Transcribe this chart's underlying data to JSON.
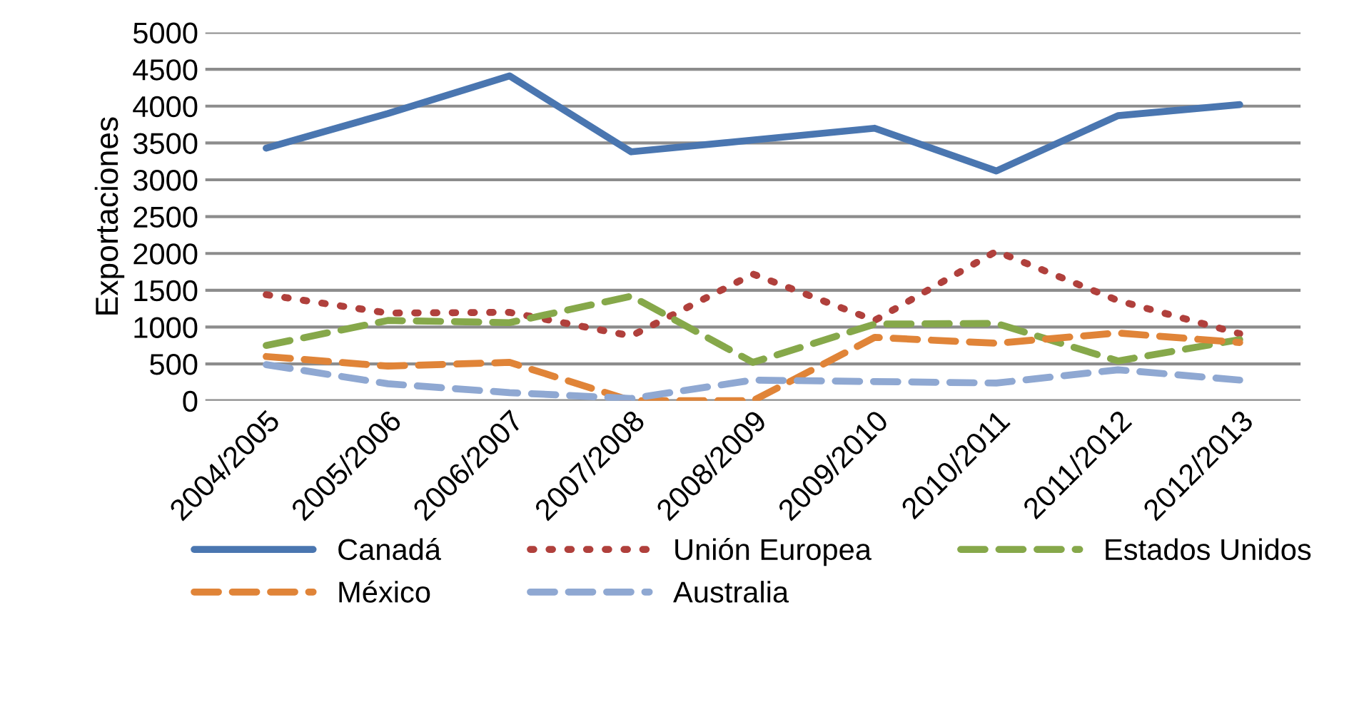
{
  "chart_data": {
    "type": "line",
    "ylabel": "Exportaciones",
    "categories": [
      "2004/2005",
      "2005/2006",
      "2006/2007",
      "2007/2008",
      "2008/2009",
      "2009/2010",
      "2010/2011",
      "2011/2012",
      "2012/2013"
    ],
    "series": [
      {
        "name": "Canadá",
        "color": "#4a76b0",
        "line_style": "solid",
        "values": [
          3430,
          3900,
          4410,
          3380,
          3540,
          3700,
          3120,
          3870,
          4020
        ]
      },
      {
        "name": "Unión Europea",
        "color": "#b0403c",
        "line_style": "dotted",
        "values": [
          1440,
          1190,
          1200,
          880,
          1720,
          1090,
          2030,
          1360,
          910
        ]
      },
      {
        "name": "Estados Unidos",
        "color": "#86a84a",
        "line_style": "dashed",
        "values": [
          750,
          1090,
          1060,
          1420,
          520,
          1040,
          1050,
          540,
          830
        ]
      },
      {
        "name": "México",
        "color": "#e08438",
        "line_style": "dashed",
        "values": [
          600,
          470,
          520,
          0,
          0,
          860,
          780,
          920,
          790
        ]
      },
      {
        "name": "Australia",
        "color": "#8fa8d2",
        "line_style": "dashed",
        "values": [
          490,
          230,
          110,
          30,
          280,
          260,
          240,
          420,
          280
        ]
      }
    ],
    "ylim": [
      0,
      5000
    ],
    "yticks": [
      0,
      500,
      1000,
      1500,
      2000,
      2500,
      3000,
      3500,
      4000,
      4500,
      5000
    ],
    "grid": "y",
    "legend": "bottom",
    "marker": "none"
  }
}
